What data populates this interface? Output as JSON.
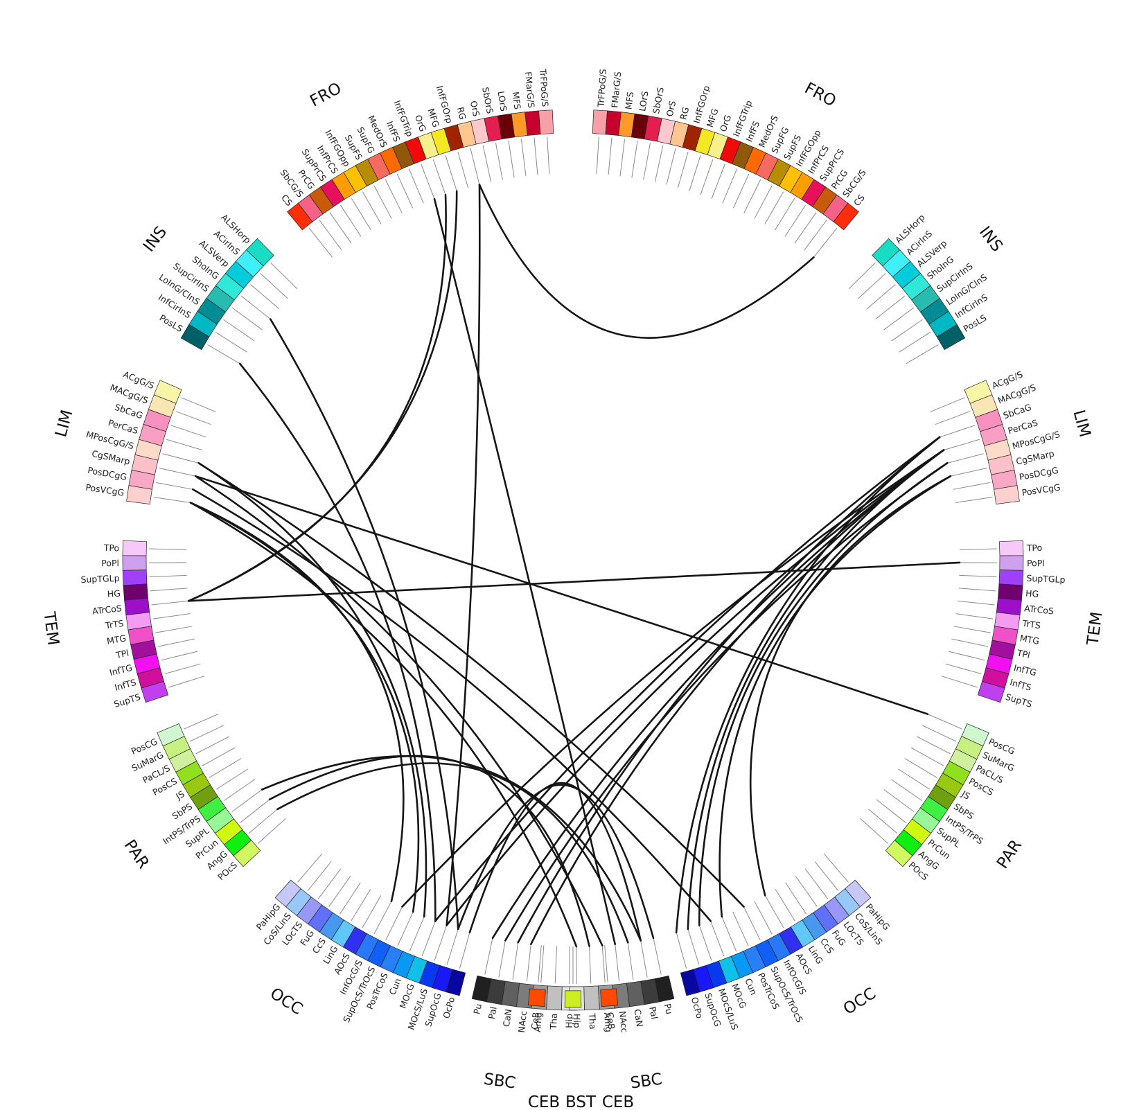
{
  "groups": [
    {
      "name": "FRO",
      "labels": [
        "FRO",
        "FRO"
      ],
      "items": [
        [
          "TrFPoG/S",
          "#f7a0a8"
        ],
        [
          "FMarG/S",
          "#c8002e"
        ],
        [
          "MFS",
          "#ff9a28"
        ],
        [
          "LOrS",
          "#6a0008"
        ],
        [
          "SbOrS",
          "#e41e50"
        ],
        [
          "OrS",
          "#ffc8cc"
        ],
        [
          "RG",
          "#ffc690"
        ],
        [
          "InfFGOrp",
          "#a02400"
        ],
        [
          "MFG",
          "#f4e820"
        ],
        [
          "OrG",
          "#f8f08a"
        ],
        [
          "InfFGTrip",
          "#f00a0a"
        ],
        [
          "InfFS",
          "#8e5a0a"
        ],
        [
          "MedOrS",
          "#ff6a00"
        ],
        [
          "SupFG",
          "#f86a60"
        ],
        [
          "SupFS",
          "#b88c00"
        ],
        [
          "InfFGOpp",
          "#ffc000"
        ],
        [
          "InfPrCS",
          "#ff9c00"
        ],
        [
          "SupPrCS",
          "#e8105c"
        ],
        [
          "PrCG",
          "#c85a0a"
        ],
        [
          "SbCG/S",
          "#f46288"
        ],
        [
          "CS",
          "#ff2e0a"
        ]
      ]
    },
    {
      "name": "INS",
      "labels": [
        "INS",
        "INS"
      ],
      "items": [
        [
          "ALSHorp",
          "#18dcc4"
        ],
        [
          "ACirInS",
          "#40f0f8"
        ],
        [
          "ALSVerp",
          "#00ccdc"
        ],
        [
          "ShoInG",
          "#30e8d8"
        ],
        [
          "SupCirInS",
          "#28bcb0"
        ],
        [
          "LoInG/CInS",
          "#008c94"
        ],
        [
          "InfCirInS",
          "#00b8c4"
        ],
        [
          "PosLS",
          "#006068"
        ]
      ]
    },
    {
      "name": "LIM",
      "labels": [
        "LIM",
        "LIM"
      ],
      "items": [
        [
          "ACgG/S",
          "#f8f4a8"
        ],
        [
          "MACgG/S",
          "#fae6b4"
        ],
        [
          "SbCaG",
          "#f890c0"
        ],
        [
          "PerCaS",
          "#f8a0c4"
        ],
        [
          "MPosCgG/S",
          "#fcdcc8"
        ],
        [
          "CgSMarp",
          "#fcc0c8"
        ],
        [
          "PosDCgG",
          "#f8a8c4"
        ],
        [
          "PosVCgG",
          "#fcd0cc"
        ]
      ]
    },
    {
      "name": "TEM",
      "labels": [
        "TEM",
        "TEM"
      ],
      "items": [
        [
          "TPo",
          "#f8c8f8"
        ],
        [
          "PoPl",
          "#d0a0f0"
        ],
        [
          "SupTGLp",
          "#a040f8"
        ],
        [
          "HG",
          "#700070"
        ],
        [
          "ATrCoS",
          "#9c10c8"
        ],
        [
          "TrTS",
          "#f49cf4"
        ],
        [
          "MTG",
          "#f050c8"
        ],
        [
          "TPl",
          "#a0109c"
        ],
        [
          "InfTG",
          "#f010f0"
        ],
        [
          "InfTS",
          "#d0109c"
        ],
        [
          "SupTS",
          "#c040f0"
        ]
      ]
    },
    {
      "name": "PAR",
      "labels": [
        "PAR",
        "PAR"
      ],
      "items": [
        [
          "PosCG",
          "#d0f8d0"
        ],
        [
          "SuMarG",
          "#c8f080"
        ],
        [
          "PaCL/S",
          "#d0f0a0"
        ],
        [
          "PosCS",
          "#90e020"
        ],
        [
          "JS",
          "#98c810"
        ],
        [
          "SbPS",
          "#70a010"
        ],
        [
          "IntPS/TrPS",
          "#40f040"
        ],
        [
          "SupPL",
          "#98f898"
        ],
        [
          "PrCun",
          "#d0f810"
        ],
        [
          "AngG",
          "#10f010"
        ],
        [
          "POcS",
          "#d0f860"
        ]
      ]
    },
    {
      "name": "OCC",
      "labels": [
        "OCC",
        "OCC"
      ],
      "items": [
        [
          "PaHipG",
          "#c8c8f8"
        ],
        [
          "CoS/LinS",
          "#98c8f8"
        ],
        [
          "LOcTS",
          "#9898f8"
        ],
        [
          "FuG",
          "#6070f8"
        ],
        [
          "CcS",
          "#4898f0"
        ],
        [
          "LinG",
          "#60c8f8"
        ],
        [
          "AOcS",
          "#3030f0"
        ],
        [
          "InfOcG/S",
          "#2878f8"
        ],
        [
          "SupOcS/TrOcS",
          "#1060f8"
        ],
        [
          "PosTrCoS",
          "#2880f8"
        ],
        [
          "Cun",
          "#0898f8"
        ],
        [
          "MOcG",
          "#10c0e8"
        ],
        [
          "MOcS/LuS",
          "#0838f0"
        ],
        [
          "SupOcG",
          "#1818f8"
        ],
        [
          "OcPo",
          "#0808a0"
        ]
      ]
    },
    {
      "name": "SBC",
      "labels": [
        "SBC",
        "SBC"
      ],
      "items": [
        [
          "Pu",
          "#202020"
        ],
        [
          "Pal",
          "#3c3c3c"
        ],
        [
          "CaN",
          "#606060"
        ],
        [
          "NAcc",
          "#7c7c7c"
        ],
        [
          "Amg",
          "#9c9c9c"
        ],
        [
          "Tha",
          "#c0c0c0"
        ],
        [
          "Hip",
          "#e4e4e4"
        ]
      ]
    },
    {
      "name": "CEB",
      "labels": [
        "CEB",
        "CEB"
      ],
      "items": [
        [
          "CeB",
          "#ff4a00"
        ]
      ]
    },
    {
      "name": "BST",
      "labels": [
        "BST"
      ],
      "items": [
        [
          "",
          ""
        ]
      ]
    }
  ],
  "bst_color": "#ccee22",
  "bottom_caption": [
    "CEB",
    "BST",
    "CEB"
  ],
  "connections": [
    [
      "L",
      "MPosCgG/S",
      "R",
      "SupOcS/TrOcS"
    ],
    [
      "L",
      "PosDCgG",
      "R",
      "MOcG"
    ],
    [
      "L",
      "CgSMarp",
      "R",
      "PosCG"
    ],
    [
      "L",
      "ATrCoS",
      "R",
      "PoPl"
    ],
    [
      "L",
      "ATrCoS",
      "L",
      "OrG"
    ],
    [
      "L",
      "ATrCoS",
      "L",
      "MFG"
    ],
    [
      "L",
      "RG",
      "L",
      "MOcS/LuS"
    ],
    [
      "L",
      "RG",
      "R",
      "CS"
    ],
    [
      "L",
      "PosVCgG",
      "L",
      "InfOcG/S"
    ],
    [
      "L",
      "PosVCgG",
      "L",
      "PosTrCoS"
    ],
    [
      "L",
      "MPosCgG/S",
      "L",
      "Cun"
    ],
    [
      "L",
      "PosVCgG",
      "R",
      "Hip"
    ],
    [
      "L",
      "CgSMarp",
      "R",
      "Amg"
    ],
    [
      "L",
      "PosLS",
      "L",
      "MOcG"
    ],
    [
      "L",
      "ShoInG",
      "L",
      "SupOcG"
    ],
    [
      "L",
      "InfFGTrip",
      "R",
      "NAcc"
    ],
    [
      "R",
      "PerCaS",
      "L",
      "MOcS/LuS"
    ],
    [
      "R",
      "PerCaS",
      "L",
      "SupOcS/TrOcS"
    ],
    [
      "R",
      "SbCaG",
      "L",
      "MOcG"
    ],
    [
      "R",
      "PerCaS",
      "L",
      "Pu"
    ],
    [
      "R",
      "MPosCgG/S",
      "L",
      "Pal"
    ],
    [
      "R",
      "SbCaG",
      "L",
      "CaN"
    ],
    [
      "R",
      "PerCaS",
      "L",
      "NAcc"
    ],
    [
      "R",
      "PerCaS",
      "R",
      "SupOcG"
    ],
    [
      "R",
      "MPosCgG/S",
      "R",
      "MOcS/LuS"
    ],
    [
      "R",
      "SbCaG",
      "R",
      "OcPo"
    ],
    [
      "R",
      "CgSMarp",
      "R",
      "Cun"
    ],
    [
      "R",
      "CgSMarp",
      "R",
      "AOcS"
    ],
    [
      "L",
      "SupPL",
      "R",
      "Pal"
    ],
    [
      "L",
      "AngG",
      "R",
      "CaN"
    ],
    [
      "L",
      "PrCun",
      "R",
      "Tha"
    ],
    [
      "L",
      "SupOcG",
      "R",
      "Pu"
    ],
    [
      "L",
      "OcPo",
      "R",
      "Pal"
    ]
  ]
}
